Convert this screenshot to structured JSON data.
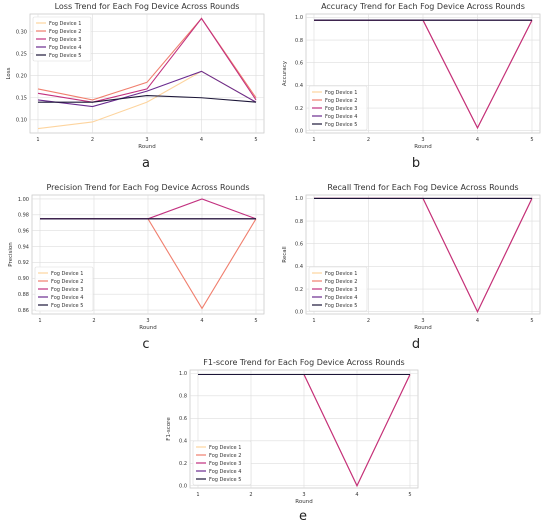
{
  "figure": {
    "colors": {
      "Fog Device 1": "#fdd49e",
      "Fog Device 2": "#f07f6e",
      "Fog Device 3": "#c2307f",
      "Fog Device 4": "#6a2b8f",
      "Fog Device 5": "#1c1638",
      "grid": "#dddddd",
      "frame": "#cccccc"
    },
    "legend_placement": "lower-left (upper-left in panel a)"
  },
  "chart_data": [
    {
      "panel_letter": "a",
      "type": "line",
      "title": "Loss Trend for Each Fog Device Across Rounds",
      "xlabel": "Round",
      "ylabel": "Loss",
      "x": [
        1,
        2,
        3,
        4,
        5
      ],
      "xticks": [
        "1",
        "2",
        "3",
        "4",
        "5"
      ],
      "ylim": [
        0.07,
        0.34
      ],
      "yticks": [
        0.1,
        0.15,
        0.2,
        0.25,
        0.3
      ],
      "ytick_labels": [
        "0.10",
        "0.15",
        "0.20",
        "0.25",
        "0.30"
      ],
      "grid": true,
      "legend": "upper-left",
      "series": [
        {
          "name": "Fog Device 1",
          "values": [
            0.08,
            0.095,
            0.14,
            0.21,
            0.14
          ]
        },
        {
          "name": "Fog Device 2",
          "values": [
            0.17,
            0.145,
            0.185,
            0.33,
            0.15
          ]
        },
        {
          "name": "Fog Device 3",
          "values": [
            0.16,
            0.14,
            0.17,
            0.33,
            0.145
          ]
        },
        {
          "name": "Fog Device 4",
          "values": [
            0.145,
            0.13,
            0.165,
            0.21,
            0.14
          ]
        },
        {
          "name": "Fog Device 5",
          "values": [
            0.14,
            0.14,
            0.155,
            0.15,
            0.14
          ]
        }
      ]
    },
    {
      "panel_letter": "b",
      "type": "line",
      "title": "Accuracy Trend for Each Fog Device Across Rounds",
      "xlabel": "Round",
      "ylabel": "Accuracy",
      "x": [
        1,
        2,
        3,
        4,
        5
      ],
      "xticks": [
        "1",
        "2",
        "3",
        "4",
        "5"
      ],
      "ylim": [
        -0.02,
        1.03
      ],
      "yticks": [
        0.0,
        0.2,
        0.4,
        0.6,
        0.8,
        1.0
      ],
      "ytick_labels": [
        "0.0",
        "0.2",
        "0.4",
        "0.6",
        "0.8",
        "1.0"
      ],
      "grid": true,
      "legend": "lower-left",
      "series": [
        {
          "name": "Fog Device 1",
          "values": [
            0.975,
            0.975,
            0.975,
            0.975,
            0.975
          ]
        },
        {
          "name": "Fog Device 2",
          "values": [
            0.975,
            0.975,
            0.975,
            0.025,
            0.975
          ]
        },
        {
          "name": "Fog Device 3",
          "values": [
            0.975,
            0.975,
            0.975,
            0.025,
            0.975
          ]
        },
        {
          "name": "Fog Device 4",
          "values": [
            0.975,
            0.975,
            0.975,
            0.975,
            0.975
          ]
        },
        {
          "name": "Fog Device 5",
          "values": [
            0.975,
            0.975,
            0.975,
            0.975,
            0.975
          ]
        }
      ]
    },
    {
      "panel_letter": "c",
      "type": "line",
      "title": "Precision Trend for Each Fog Device Across Rounds",
      "xlabel": "Round",
      "ylabel": "Precision",
      "x": [
        1,
        2,
        3,
        4,
        5
      ],
      "xticks": [
        "1",
        "2",
        "3",
        "4",
        "5"
      ],
      "ylim": [
        0.855,
        1.005
      ],
      "yticks": [
        0.86,
        0.88,
        0.9,
        0.92,
        0.94,
        0.96,
        0.98,
        1.0
      ],
      "ytick_labels": [
        "0.86",
        "0.88",
        "0.90",
        "0.92",
        "0.94",
        "0.96",
        "0.98",
        "1.00"
      ],
      "grid": true,
      "legend": "lower-left",
      "series": [
        {
          "name": "Fog Device 1",
          "values": [
            0.975,
            0.975,
            0.975,
            0.975,
            0.975
          ]
        },
        {
          "name": "Fog Device 2",
          "values": [
            0.975,
            0.975,
            0.975,
            0.862,
            0.975
          ]
        },
        {
          "name": "Fog Device 3",
          "values": [
            0.975,
            0.975,
            0.975,
            1.0,
            0.975
          ]
        },
        {
          "name": "Fog Device 4",
          "values": [
            0.975,
            0.975,
            0.975,
            0.975,
            0.975
          ]
        },
        {
          "name": "Fog Device 5",
          "values": [
            0.975,
            0.975,
            0.975,
            0.975,
            0.975
          ]
        }
      ]
    },
    {
      "panel_letter": "d",
      "type": "line",
      "title": "Recall Trend for Each Fog Device Across Rounds",
      "xlabel": "Round",
      "ylabel": "Recall",
      "x": [
        1,
        2,
        3,
        4,
        5
      ],
      "xticks": [
        "1",
        "2",
        "3",
        "4",
        "5"
      ],
      "ylim": [
        -0.02,
        1.03
      ],
      "yticks": [
        0.0,
        0.2,
        0.4,
        0.6,
        0.8,
        1.0
      ],
      "ytick_labels": [
        "0.0",
        "0.2",
        "0.4",
        "0.6",
        "0.8",
        "1.0"
      ],
      "grid": true,
      "legend": "lower-left",
      "series": [
        {
          "name": "Fog Device 1",
          "values": [
            1.0,
            1.0,
            1.0,
            1.0,
            1.0
          ]
        },
        {
          "name": "Fog Device 2",
          "values": [
            1.0,
            1.0,
            1.0,
            0.0,
            1.0
          ]
        },
        {
          "name": "Fog Device 3",
          "values": [
            1.0,
            1.0,
            1.0,
            0.0,
            1.0
          ]
        },
        {
          "name": "Fog Device 4",
          "values": [
            1.0,
            1.0,
            1.0,
            1.0,
            1.0
          ]
        },
        {
          "name": "Fog Device 5",
          "values": [
            1.0,
            1.0,
            1.0,
            1.0,
            1.0
          ]
        }
      ]
    },
    {
      "panel_letter": "e",
      "type": "line",
      "title": "F1-score Trend for Each Fog Device Across Rounds",
      "xlabel": "Round",
      "ylabel": "F1-score",
      "x": [
        1,
        2,
        3,
        4,
        5
      ],
      "xticks": [
        "1",
        "2",
        "3",
        "4",
        "5"
      ],
      "ylim": [
        -0.02,
        1.03
      ],
      "yticks": [
        0.0,
        0.2,
        0.4,
        0.6,
        0.8,
        1.0
      ],
      "ytick_labels": [
        "0.0",
        "0.2",
        "0.4",
        "0.6",
        "0.8",
        "1.0"
      ],
      "grid": true,
      "legend": "lower-left",
      "series": [
        {
          "name": "Fog Device 1",
          "values": [
            0.99,
            0.99,
            0.99,
            0.99,
            0.99
          ]
        },
        {
          "name": "Fog Device 2",
          "values": [
            0.99,
            0.99,
            0.99,
            0.0,
            0.99
          ]
        },
        {
          "name": "Fog Device 3",
          "values": [
            0.99,
            0.99,
            0.99,
            0.0,
            0.99
          ]
        },
        {
          "name": "Fog Device 4",
          "values": [
            0.99,
            0.99,
            0.99,
            0.99,
            0.99
          ]
        },
        {
          "name": "Fog Device 5",
          "values": [
            0.99,
            0.99,
            0.99,
            0.99,
            0.99
          ]
        }
      ]
    }
  ]
}
